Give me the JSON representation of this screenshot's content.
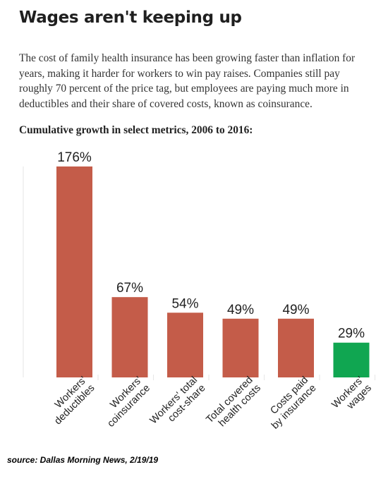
{
  "header": {
    "title": "Wages aren't keeping up",
    "description": "The cost of family health insurance has been growing faster than inflation for years, making it harder for workers to win pay raises. Companies still pay roughly 70 percent of the price tag, but employees are paying much more in deductibles and their share of covered costs, known as coinsurance.",
    "chart_subtitle": "Cumulative growth in select metrics, 2006 to 2016:"
  },
  "footer": {
    "source": "source: Dallas Morning News, 2/19/19"
  },
  "chart_data": {
    "type": "bar",
    "title": "Cumulative growth in select metrics, 2006 to 2016:",
    "categories": [
      [
        "Workers'",
        "deductibles"
      ],
      [
        "Workers'",
        "coinsurance"
      ],
      [
        "Workers' total",
        "cost-share"
      ],
      [
        "Total covered",
        "health costs"
      ],
      [
        "Costs paid",
        "by insurance"
      ],
      [
        "Workers'",
        "wages"
      ]
    ],
    "values": [
      176,
      67,
      54,
      49,
      49,
      29
    ],
    "value_labels": [
      "176%",
      "67%",
      "54%",
      "49%",
      "49%",
      "29%"
    ],
    "unit": "%",
    "ylim": [
      0,
      176
    ],
    "grid": false,
    "legend": "none",
    "colors": {
      "bar": "#c45c49",
      "highlight": "#10a651",
      "highlight_index": 5,
      "label_text": "#222222",
      "axis_line": "#e6e6e6"
    }
  }
}
